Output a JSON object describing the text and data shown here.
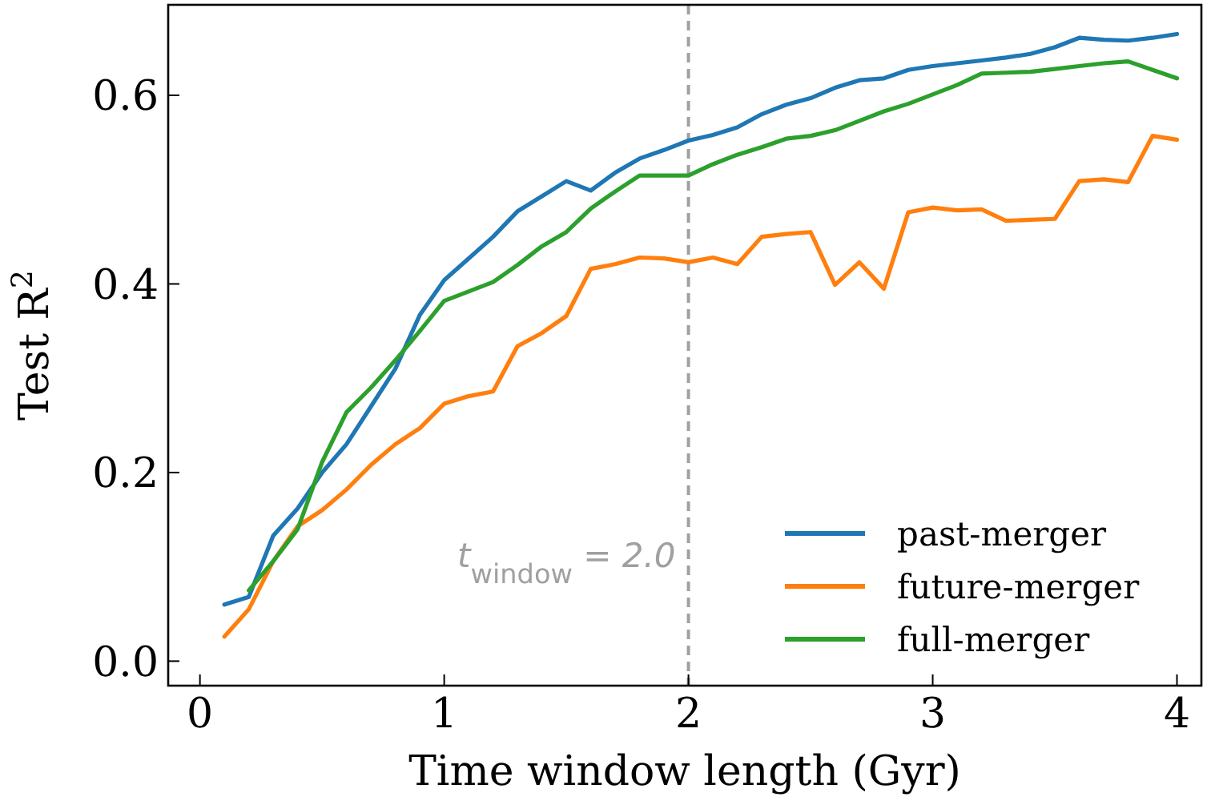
{
  "chart_data": {
    "type": "line",
    "xlabel": "Time window length (Gyr)",
    "ylabel": "Test R$^{2}$",
    "x": [
      0.1,
      0.2,
      0.3,
      0.4,
      0.5,
      0.6,
      0.7,
      0.8,
      0.9,
      1.0,
      1.1,
      1.2,
      1.3,
      1.4,
      1.5,
      1.6,
      1.7,
      1.8,
      1.9,
      2.0,
      2.1,
      2.2,
      2.3,
      2.4,
      2.5,
      2.6,
      2.7,
      2.8,
      2.9,
      3.0,
      3.1,
      3.2,
      3.3,
      3.4,
      3.5,
      3.6,
      3.7,
      3.8,
      3.9,
      4.0
    ],
    "series": [
      {
        "name": "past-merger",
        "color": "#1f77b4",
        "values": [
          0.06,
          0.068,
          0.133,
          0.162,
          0.2,
          0.23,
          0.27,
          0.31,
          0.367,
          0.404,
          0.427,
          0.45,
          0.477,
          0.493,
          0.509,
          0.499,
          0.518,
          0.533,
          0.542,
          0.552,
          0.558,
          0.566,
          0.58,
          0.59,
          0.597,
          0.608,
          0.616,
          0.618,
          0.627,
          0.631,
          0.634,
          0.637,
          0.64,
          0.644,
          0.651,
          0.661,
          0.659,
          0.658,
          0.661,
          0.665
        ]
      },
      {
        "name": "future-merger",
        "color": "#ff7f0e",
        "values": [
          0.026,
          0.055,
          0.106,
          0.143,
          0.16,
          0.182,
          0.208,
          0.23,
          0.247,
          0.273,
          0.281,
          0.286,
          0.334,
          0.348,
          0.366,
          0.416,
          0.421,
          0.428,
          0.427,
          0.423,
          0.428,
          0.421,
          0.45,
          0.453,
          0.455,
          0.399,
          0.423,
          0.395,
          0.476,
          0.481,
          0.478,
          0.479,
          0.467,
          0.468,
          0.469,
          0.509,
          0.511,
          0.508,
          0.557,
          0.553
        ]
      },
      {
        "name": "full-merger",
        "color": "#2ca02c",
        "values": [
          null,
          0.075,
          0.106,
          0.14,
          0.211,
          0.264,
          0.29,
          0.319,
          0.35,
          0.382,
          0.392,
          0.402,
          0.42,
          0.44,
          0.455,
          0.48,
          0.498,
          0.515,
          0.515,
          0.515,
          0.527,
          0.537,
          0.545,
          0.554,
          0.557,
          0.563,
          0.573,
          0.583,
          0.591,
          0.601,
          0.611,
          0.623,
          0.624,
          0.625,
          0.628,
          0.631,
          0.634,
          0.636,
          0.627,
          0.618
        ]
      }
    ],
    "xlim": [
      -0.13,
      4.1
    ],
    "ylim": [
      -0.026,
      0.696
    ],
    "xticks": [
      0,
      1,
      2,
      3,
      4
    ],
    "yticks": [
      {
        "value": 0,
        "label": "0.0"
      },
      0.2,
      0.4,
      0.6
    ],
    "ref_lines": [
      {
        "axis": "x",
        "value": 2,
        "label": "t$_{window}$ = 2.0",
        "color": "#a0a0a0",
        "line_style": "dashed"
      }
    ],
    "legend": "bottom right",
    "grid": false,
    "marker": "none",
    "line_style": "solid"
  }
}
